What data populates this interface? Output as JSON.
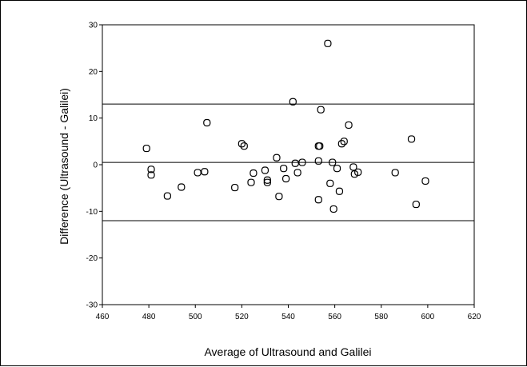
{
  "chart_data": {
    "type": "scatter",
    "title": "",
    "xlabel": "Average of Ultrasound and Galilei",
    "ylabel": "Difference (Ultrasound - Galilei)",
    "xlim": [
      460,
      620
    ],
    "ylim": [
      -30,
      30
    ],
    "x_ticks": [
      460,
      480,
      500,
      520,
      540,
      560,
      580,
      600,
      620
    ],
    "y_ticks": [
      30,
      20,
      10,
      0,
      -10,
      -20,
      -30
    ],
    "reference_lines": [
      13,
      0.5,
      -12
    ],
    "grid": false,
    "marker": "open-circle",
    "points": [
      [
        479,
        3.5
      ],
      [
        481,
        -1
      ],
      [
        481,
        -2.2
      ],
      [
        488,
        -6.7
      ],
      [
        494,
        -4.8
      ],
      [
        501,
        -1.7
      ],
      [
        504,
        -1.5
      ],
      [
        505,
        9
      ],
      [
        517,
        -4.9
      ],
      [
        520,
        4.5
      ],
      [
        521,
        4
      ],
      [
        524,
        -3.8
      ],
      [
        525,
        -1.8
      ],
      [
        530,
        -1.2
      ],
      [
        531,
        -3.8
      ],
      [
        531,
        -3.3
      ],
      [
        535,
        1.5
      ],
      [
        536,
        -6.8
      ],
      [
        538,
        -0.8
      ],
      [
        539,
        -3
      ],
      [
        542,
        13.5
      ],
      [
        543,
        0.3
      ],
      [
        544,
        -1.7
      ],
      [
        546,
        0.5
      ],
      [
        553,
        0.8
      ],
      [
        553,
        4
      ],
      [
        553.5,
        4
      ],
      [
        553,
        -7.5
      ],
      [
        554,
        11.8
      ],
      [
        557,
        26
      ],
      [
        558,
        -4
      ],
      [
        559,
        0.5
      ],
      [
        559.5,
        -9.5
      ],
      [
        561,
        -0.8
      ],
      [
        562,
        -5.7
      ],
      [
        563,
        4.5
      ],
      [
        564,
        5
      ],
      [
        566,
        8.5
      ],
      [
        568,
        -0.5
      ],
      [
        568.5,
        -2
      ],
      [
        570,
        -1.6
      ],
      [
        586,
        -1.7
      ],
      [
        593,
        5.5
      ],
      [
        595,
        -8.5
      ],
      [
        599,
        -3.5
      ]
    ]
  }
}
